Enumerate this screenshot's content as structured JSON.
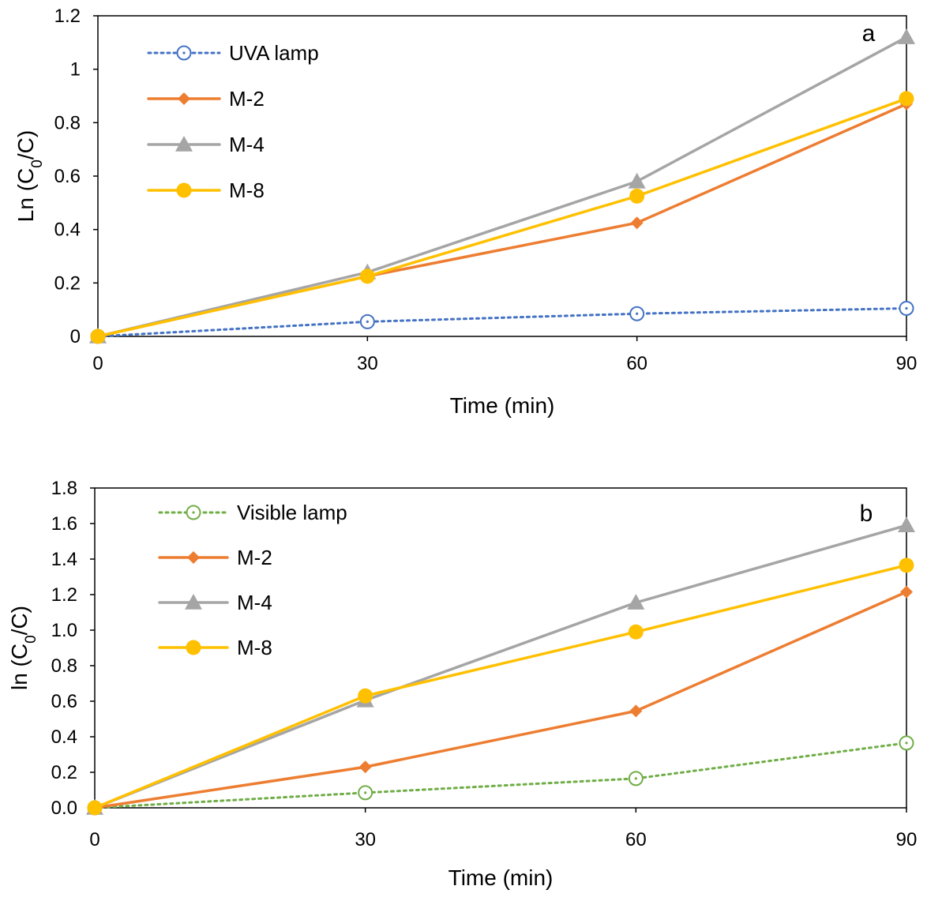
{
  "chart_data": [
    {
      "type": "line",
      "panel_label": "a",
      "xlabel": "Time (min)",
      "ylabel_prefix": "Ln (C",
      "ylabel_sub": "0",
      "ylabel_suffix": "/C)",
      "x": [
        0,
        30,
        60,
        90
      ],
      "xlim": [
        0,
        90
      ],
      "ylim": [
        0,
        1.2
      ],
      "xticks": [
        0,
        30,
        60,
        90
      ],
      "xtick_labels": [
        "0",
        "30",
        "60",
        "90"
      ],
      "yticks": [
        0,
        0.2,
        0.4,
        0.6,
        0.8,
        1.0,
        1.2
      ],
      "ytick_labels": [
        "0",
        "0.2",
        "0.4",
        "0.6",
        "0.8",
        "1",
        "1.2"
      ],
      "grid": false,
      "legend_position": "top-left",
      "series": [
        {
          "name": "UVA lamp",
          "values": [
            0,
            0.055,
            0.085,
            0.105
          ],
          "color": "#4472C4",
          "marker": "open-circle-dot",
          "dash": "dotted"
        },
        {
          "name": "M-2",
          "values": [
            0,
            0.225,
            0.425,
            0.87
          ],
          "color": "#ED7D31",
          "marker": "diamond",
          "dash": "solid"
        },
        {
          "name": "M-4",
          "values": [
            0,
            0.24,
            0.58,
            1.12
          ],
          "color": "#A5A5A5",
          "marker": "triangle",
          "dash": "solid"
        },
        {
          "name": "M-8",
          "values": [
            0,
            0.225,
            0.525,
            0.89
          ],
          "color": "#FFC000",
          "marker": "circle",
          "dash": "solid"
        }
      ]
    },
    {
      "type": "line",
      "panel_label": "b",
      "xlabel": "Time (min)",
      "ylabel_prefix": "ln (C",
      "ylabel_sub": "0",
      "ylabel_suffix": "/C)",
      "x": [
        0,
        30,
        60,
        90
      ],
      "xlim": [
        0,
        90
      ],
      "ylim": [
        0,
        1.8
      ],
      "xticks": [
        0,
        30,
        60,
        90
      ],
      "xtick_labels": [
        "0",
        "30",
        "60",
        "90"
      ],
      "yticks": [
        0,
        0.2,
        0.4,
        0.6,
        0.8,
        1.0,
        1.2,
        1.4,
        1.6,
        1.8
      ],
      "ytick_labels": [
        "0.0",
        "0.2",
        "0.4",
        "0.6",
        "0.8",
        "1.0",
        "1.2",
        "1.4",
        "1.6",
        "1.8"
      ],
      "grid": false,
      "legend_position": "top-left",
      "series": [
        {
          "name": "Visible lamp",
          "values": [
            0,
            0.085,
            0.165,
            0.365
          ],
          "color": "#70AD47",
          "marker": "open-circle-dot",
          "dash": "dotted"
        },
        {
          "name": "M-2",
          "values": [
            0,
            0.23,
            0.545,
            1.215
          ],
          "color": "#ED7D31",
          "marker": "diamond",
          "dash": "solid"
        },
        {
          "name": "M-4",
          "values": [
            0,
            0.605,
            1.155,
            1.59
          ],
          "color": "#A5A5A5",
          "marker": "triangle",
          "dash": "solid"
        },
        {
          "name": "M-8",
          "values": [
            0,
            0.63,
            0.99,
            1.365
          ],
          "color": "#FFC000",
          "marker": "circle",
          "dash": "solid"
        }
      ]
    }
  ]
}
